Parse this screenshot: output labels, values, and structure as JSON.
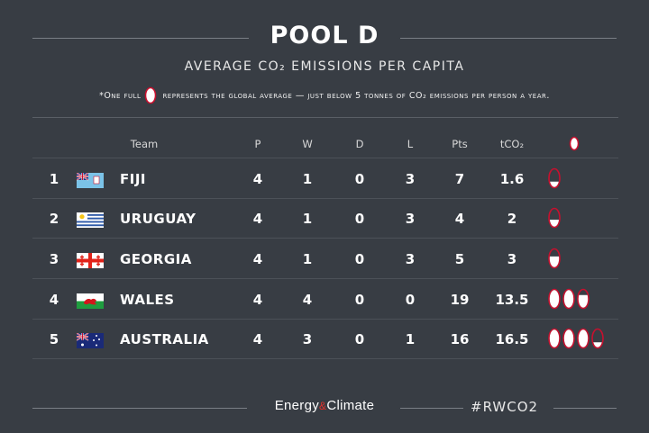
{
  "title": "POOL D",
  "subtitle": "AVERAGE CO₂ EMISSIONS PER CAPITA",
  "note": {
    "before": "*One full",
    "after": "represents the global average — just below 5 tonnes of CO₂ emissions per person a year."
  },
  "headers": {
    "team": "Team",
    "p": "P",
    "w": "W",
    "d": "D",
    "l": "L",
    "pts": "Pts",
    "tco2": "tCO₂"
  },
  "rows": [
    {
      "rank": "1",
      "team": "FIJI",
      "p": "4",
      "w": "1",
      "d": "0",
      "l": "3",
      "pts": "7",
      "tco2": "1.6",
      "balls_value": 0.32,
      "flag": "fiji-flag"
    },
    {
      "rank": "2",
      "team": "URUGUAY",
      "p": "4",
      "w": "1",
      "d": "0",
      "l": "3",
      "pts": "4",
      "tco2": "2",
      "balls_value": 0.4,
      "flag": "uruguay-flag"
    },
    {
      "rank": "3",
      "team": "GEORGIA",
      "p": "4",
      "w": "1",
      "d": "0",
      "l": "3",
      "pts": "5",
      "tco2": "3",
      "balls_value": 0.6,
      "flag": "georgia-flag"
    },
    {
      "rank": "4",
      "team": "WALES",
      "p": "4",
      "w": "4",
      "d": "0",
      "l": "0",
      "pts": "19",
      "tco2": "13.5",
      "balls_value": 2.7,
      "flag": "wales-flag"
    },
    {
      "rank": "5",
      "team": "AUSTRALIA",
      "p": "4",
      "w": "3",
      "d": "0",
      "l": "1",
      "pts": "16",
      "tco2": "16.5",
      "balls_value": 3.3,
      "flag": "australia-flag"
    }
  ],
  "footer": {
    "logo_a": "Energy",
    "logo_amp": "&",
    "logo_b": "Climate",
    "hashtag": "#RWCO2"
  },
  "colors": {
    "background": "#383d44",
    "accent": "#c8102e"
  }
}
